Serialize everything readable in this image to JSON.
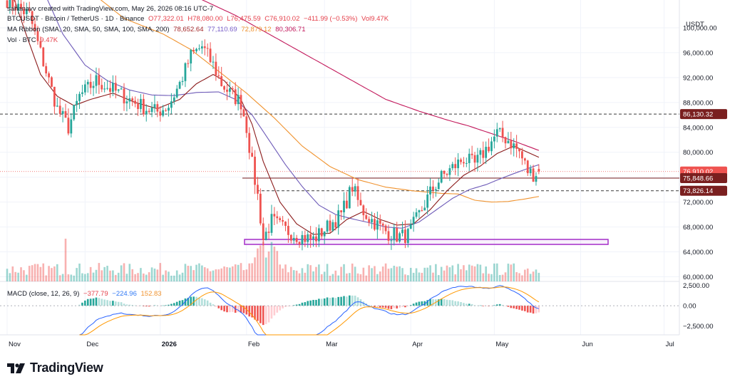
{
  "header": {
    "created_line": "sahanavv created with TradingView.com, May 26, 2026 08:16 UTC-7",
    "symbol": "BTCUSDT · Bitcoin / TetherUS · 1D · Binance",
    "open": "O77,322.01",
    "high": "H78,080.00",
    "low": "L76,475.59",
    "close": "C76,910.02",
    "change": "−411.99 (−0.53%)",
    "vol": "Vol9.47K",
    "ma_label": "MA Ribbon (SMA, 20, SMA, 50, SMA, 100, SMA, 200)",
    "ma_values": [
      "78,652.64",
      "77,110.69",
      "72,879.12",
      "80,306.71"
    ],
    "vol_label": "Vol · BTC",
    "vol_value": "9.47K",
    "macd_label": "MACD (close, 12, 26, 9)",
    "macd_values": [
      "−377.79",
      "−224.96",
      "152.83"
    ]
  },
  "brand": {
    "name": "TradingView"
  },
  "colors": {
    "up": "#26a69a",
    "down": "#ef5350",
    "sma20": "#8b1a1a",
    "sma50": "#6e5bb8",
    "sma100": "#f0932f",
    "sma200": "#c2185b",
    "macd": "#2962ff",
    "signal": "#ff9800",
    "zone": "#a52fc9"
  },
  "chart_data": {
    "type": "candlestick",
    "symbol": "BTCUSDT",
    "interval": "1D",
    "currency": "USDT",
    "x_tick_labels": [
      "Nov",
      "Dec",
      "2026",
      "Feb",
      "Mar",
      "Apr",
      "May",
      "Jun",
      "Jul"
    ],
    "y_tick_labels": [
      "100,000.00",
      "96,000.00",
      "92,000.00",
      "88,000.00",
      "84,000.00",
      "80,000.00",
      "76,000.00",
      "72,000.00",
      "68,000.00",
      "64,000.00",
      "60,000.00"
    ],
    "y_ticks": [
      100000,
      96000,
      92000,
      88000,
      84000,
      80000,
      76000,
      72000,
      68000,
      64000,
      60000
    ],
    "ylim": [
      58800,
      104000
    ],
    "price_tags": [
      {
        "label": "86,130.32",
        "value": 86130.32,
        "style": "dark"
      },
      {
        "label": "76,910.02",
        "value": 76910.02,
        "style": "last"
      },
      {
        "label": "75,848.66",
        "value": 75848.66,
        "style": "dark"
      },
      {
        "label": "73,826.14",
        "value": 73826.14,
        "style": "dark"
      }
    ],
    "levels": [
      {
        "value": 86130.32,
        "style": "dashed"
      },
      {
        "value": 75848.66,
        "style": "solid"
      },
      {
        "value": 73826.14,
        "style": "dashed"
      }
    ],
    "support_zone": {
      "low": 65200,
      "high": 66000
    },
    "macd_tick_labels": [
      "2,500.00",
      "0.00",
      "−2,500.00"
    ],
    "macd_ticks": [
      2500,
      0,
      -2500
    ],
    "macd_ylim": [
      -3600,
      3000
    ],
    "anchors": {
      "close": [
        [
          0,
          104500
        ],
        [
          8,
          102000
        ],
        [
          12,
          96000
        ],
        [
          18,
          87000
        ],
        [
          22,
          84000
        ],
        [
          26,
          89000
        ],
        [
          32,
          91500
        ],
        [
          38,
          90000
        ],
        [
          44,
          88500
        ],
        [
          50,
          87000
        ],
        [
          54,
          86500
        ],
        [
          58,
          87500
        ],
        [
          62,
          91000
        ],
        [
          66,
          95500
        ],
        [
          70,
          97000
        ],
        [
          74,
          94000
        ],
        [
          77,
          91000
        ],
        [
          80,
          89500
        ],
        [
          84,
          88000
        ],
        [
          86,
          84000
        ],
        [
          88,
          78000
        ],
        [
          90,
          73000
        ],
        [
          92,
          66000
        ],
        [
          95,
          69000
        ],
        [
          100,
          67500
        ],
        [
          105,
          66500
        ],
        [
          110,
          66000
        ],
        [
          115,
          68000
        ],
        [
          120,
          70000
        ],
        [
          124,
          74500
        ],
        [
          127,
          71000
        ],
        [
          130,
          69500
        ],
        [
          134,
          68000
        ],
        [
          137,
          67000
        ],
        [
          141,
          66500
        ],
        [
          144,
          66700
        ],
        [
          148,
          70000
        ],
        [
          152,
          73500
        ],
        [
          156,
          76000
        ],
        [
          160,
          77500
        ],
        [
          164,
          79000
        ],
        [
          168,
          78000
        ],
        [
          172,
          80500
        ],
        [
          176,
          83000
        ],
        [
          180,
          82000
        ],
        [
          184,
          80000
        ],
        [
          187,
          77000
        ],
        [
          189,
          76500
        ],
        [
          191,
          76910
        ]
      ],
      "sma20": [
        [
          0,
          108000
        ],
        [
          6,
          100000
        ],
        [
          12,
          92500
        ],
        [
          18,
          89000
        ],
        [
          24,
          87500
        ],
        [
          30,
          88500
        ],
        [
          38,
          89500
        ],
        [
          46,
          88000
        ],
        [
          54,
          87000
        ],
        [
          62,
          88500
        ],
        [
          68,
          91000
        ],
        [
          74,
          92500
        ],
        [
          78,
          91500
        ],
        [
          84,
          88500
        ],
        [
          88,
          84500
        ],
        [
          92,
          78500
        ],
        [
          98,
          72000
        ],
        [
          104,
          68500
        ],
        [
          110,
          66800
        ],
        [
          116,
          67000
        ],
        [
          122,
          69200
        ],
        [
          128,
          70500
        ],
        [
          134,
          69200
        ],
        [
          140,
          68300
        ],
        [
          146,
          68500
        ],
        [
          152,
          70800
        ],
        [
          158,
          73800
        ],
        [
          164,
          76300
        ],
        [
          170,
          77800
        ],
        [
          176,
          79800
        ],
        [
          182,
          81000
        ],
        [
          188,
          79800
        ],
        [
          191,
          79200
        ]
      ],
      "sma50": [
        [
          0,
          117000
        ],
        [
          10,
          109000
        ],
        [
          20,
          99000
        ],
        [
          28,
          94000
        ],
        [
          36,
          91500
        ],
        [
          44,
          90000
        ],
        [
          52,
          89200
        ],
        [
          60,
          89100
        ],
        [
          68,
          89600
        ],
        [
          76,
          89700
        ],
        [
          82,
          88500
        ],
        [
          88,
          86000
        ],
        [
          94,
          82000
        ],
        [
          100,
          78000
        ],
        [
          106,
          74500
        ],
        [
          112,
          71500
        ],
        [
          118,
          70000
        ],
        [
          124,
          69300
        ],
        [
          130,
          68700
        ],
        [
          136,
          68000
        ],
        [
          142,
          67800
        ],
        [
          148,
          68800
        ],
        [
          154,
          70700
        ],
        [
          160,
          72600
        ],
        [
          166,
          74000
        ],
        [
          172,
          74800
        ],
        [
          178,
          75900
        ],
        [
          184,
          76900
        ],
        [
          189,
          77700
        ],
        [
          191,
          78000
        ]
      ],
      "sma100": [
        [
          0,
          120000
        ],
        [
          14,
          113500
        ],
        [
          28,
          106500
        ],
        [
          42,
          101500
        ],
        [
          56,
          99000
        ],
        [
          66,
          96500
        ],
        [
          76,
          93000
        ],
        [
          86,
          89500
        ],
        [
          96,
          85500
        ],
        [
          106,
          81000
        ],
        [
          116,
          77700
        ],
        [
          126,
          75600
        ],
        [
          136,
          74400
        ],
        [
          146,
          73800
        ],
        [
          156,
          73400
        ],
        [
          162,
          73300
        ],
        [
          168,
          72300
        ],
        [
          174,
          72000
        ],
        [
          180,
          72100
        ],
        [
          186,
          72500
        ],
        [
          191,
          72900
        ]
      ],
      "sma200": [
        [
          60,
          106000
        ],
        [
          70,
          104500
        ],
        [
          82,
          102000
        ],
        [
          96,
          98500
        ],
        [
          110,
          95000
        ],
        [
          124,
          91500
        ],
        [
          136,
          88500
        ],
        [
          148,
          86600
        ],
        [
          158,
          85200
        ],
        [
          166,
          84200
        ],
        [
          174,
          83000
        ],
        [
          182,
          81800
        ],
        [
          191,
          80300
        ]
      ]
    }
  }
}
